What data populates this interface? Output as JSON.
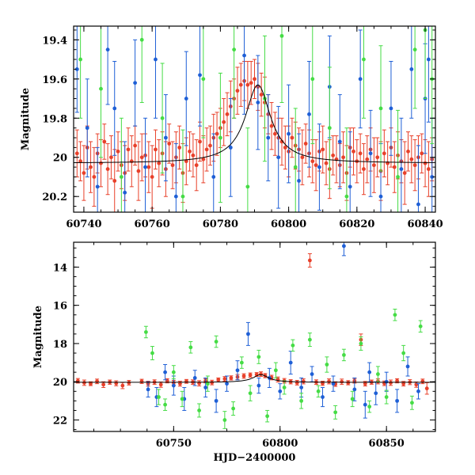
{
  "chart_data": [
    {
      "type": "scatter",
      "panel": "top",
      "xlim": [
        60737,
        60843
      ],
      "ylim": [
        20.28,
        19.33
      ],
      "y_inverted": true,
      "xlabel": "",
      "ylabel": "Magnitude",
      "xticks": [
        60740,
        60760,
        60780,
        60800,
        60820,
        60840
      ],
      "yticks": [
        19.4,
        19.6,
        19.8,
        20,
        20.2
      ],
      "xtick_labels": [
        "60740",
        "60760",
        "60780",
        "60800",
        "60820",
        "60840"
      ],
      "ytick_labels": [
        "19.4",
        "19.6",
        "19.8",
        "20",
        "20.2"
      ],
      "model": {
        "baseline": 20.03,
        "peak_x": 60791,
        "amplitude": 0.4,
        "width": 4.5
      },
      "series": [
        {
          "color": "#e8402a",
          "x": [
            60738,
            60739,
            60740,
            60741,
            60742,
            60743,
            60744,
            60745,
            60746,
            60747,
            60748,
            60749,
            60750,
            60751,
            60752,
            60753,
            60754,
            60755,
            60756,
            60757,
            60758,
            60759,
            60760,
            60761,
            60762,
            60763,
            60764,
            60765,
            60766,
            60767,
            60768,
            60769,
            60770,
            60771,
            60772,
            60773,
            60774,
            60775,
            60776,
            60777,
            60778,
            60779,
            60780,
            60781,
            60782,
            60783,
            60784,
            60785,
            60786,
            60787,
            60788,
            60789,
            60790,
            60791,
            60792,
            60793,
            60794,
            60795,
            60796,
            60797,
            60798,
            60799,
            60800,
            60801,
            60802,
            60803,
            60804,
            60805,
            60806,
            60807,
            60808,
            60809,
            60810,
            60811,
            60812,
            60813,
            60814,
            60815,
            60816,
            60817,
            60818,
            60819,
            60820,
            60821,
            60822,
            60823,
            60824,
            60825,
            60826,
            60827,
            60828,
            60829,
            60830,
            60831,
            60832,
            60833,
            60834,
            60835,
            60836,
            60837,
            60838,
            60839,
            60840,
            60841,
            60842
          ],
          "y": [
            19.98,
            20.02,
            20.08,
            19.95,
            20.05,
            20.1,
            19.98,
            20.03,
            19.92,
            20.06,
            20.0,
            20.12,
            19.97,
            20.04,
            20.08,
            19.96,
            20.02,
            19.94,
            20.07,
            20.0,
            19.99,
            20.05,
            20.1,
            19.96,
            20.03,
            19.98,
            20.06,
            19.93,
            20.04,
            20.0,
            19.95,
            20.08,
            20.02,
            19.97,
            19.99,
            20.04,
            19.92,
            20.01,
            19.96,
            19.94,
            19.9,
            19.88,
            19.85,
            19.82,
            19.78,
            19.74,
            19.7,
            19.66,
            19.63,
            19.61,
            19.63,
            19.62,
            19.6,
            19.64,
            19.68,
            19.72,
            19.78,
            19.84,
            19.88,
            19.9,
            19.92,
            19.95,
            19.97,
            19.9,
            19.94,
            19.96,
            20.0,
            19.93,
            19.98,
            20.02,
            20.04,
            19.97,
            19.96,
            20.03,
            20.06,
            19.99,
            20.01,
            20.04,
            20.0,
            20.08,
            19.95,
            19.97,
            20.02,
            19.98,
            20.06,
            20.01,
            19.96,
            20.04,
            20.0,
            20.07,
            19.98,
            20.03,
            19.95,
            20.05,
            19.99,
            20.02,
            20.08,
            19.97,
            20.01,
            20.04,
            20.0,
            19.98,
            20.03,
            20.06,
            20.01
          ],
          "err": [
            0.12,
            0.1,
            0.14,
            0.11,
            0.13,
            0.15,
            0.1,
            0.12,
            0.09,
            0.13,
            0.11,
            0.16,
            0.1,
            0.12,
            0.14,
            0.11,
            0.13,
            0.1,
            0.15,
            0.12,
            0.11,
            0.13,
            0.16,
            0.1,
            0.12,
            0.11,
            0.14,
            0.1,
            0.12,
            0.13,
            0.11,
            0.15,
            0.12,
            0.1,
            0.11,
            0.13,
            0.1,
            0.12,
            0.11,
            0.1,
            0.12,
            0.11,
            0.1,
            0.12,
            0.11,
            0.13,
            0.1,
            0.12,
            0.11,
            0.1,
            0.12,
            0.11,
            0.1,
            0.12,
            0.11,
            0.13,
            0.1,
            0.12,
            0.11,
            0.1,
            0.12,
            0.11,
            0.13,
            0.1,
            0.12,
            0.11,
            0.14,
            0.1,
            0.12,
            0.11,
            0.13,
            0.1,
            0.12,
            0.11,
            0.15,
            0.1,
            0.12,
            0.11,
            0.13,
            0.14,
            0.1,
            0.12,
            0.11,
            0.1,
            0.13,
            0.12,
            0.11,
            0.14,
            0.1,
            0.15,
            0.12,
            0.11,
            0.1,
            0.13,
            0.12,
            0.11,
            0.16,
            0.1,
            0.12,
            0.13,
            0.11,
            0.1,
            0.12,
            0.14,
            0.11
          ]
        },
        {
          "color": "#1e5fd6",
          "x": [
            60738,
            60741,
            60744,
            60747,
            60749,
            60752,
            60755,
            60758,
            60761,
            60764,
            60767,
            60770,
            60774,
            60778,
            60783,
            60787,
            60791,
            60794,
            60797,
            60800,
            60803,
            60806,
            60809,
            60812,
            60815,
            60818,
            60821,
            60824,
            60827,
            60830,
            60833,
            60836,
            60838,
            60840,
            60841,
            60842
          ],
          "y": [
            19.55,
            19.85,
            20.15,
            19.45,
            19.75,
            20.18,
            19.62,
            20.05,
            19.5,
            19.9,
            20.2,
            19.7,
            19.58,
            20.1,
            19.95,
            19.48,
            19.72,
            19.9,
            20.0,
            19.88,
            20.12,
            19.78,
            20.05,
            19.64,
            19.92,
            20.15,
            19.6,
            19.98,
            20.2,
            19.75,
            20.06,
            19.55,
            20.24,
            19.7,
            19.5,
            20.1
          ],
          "err": [
            0.22,
            0.25,
            0.2,
            0.28,
            0.24,
            0.26,
            0.22,
            0.25,
            0.3,
            0.22,
            0.27,
            0.24,
            0.26,
            0.22,
            0.25,
            0.3,
            0.24,
            0.22,
            0.26,
            0.25,
            0.24,
            0.27,
            0.22,
            0.26,
            0.24,
            0.28,
            0.25,
            0.22,
            0.27,
            0.24,
            0.26,
            0.25,
            0.3,
            0.28,
            0.32,
            0.3
          ]
        },
        {
          "color": "#45dc45",
          "x": [
            60739,
            60745,
            60751,
            60757,
            60763,
            60769,
            60775,
            60780,
            60784,
            60788,
            60793,
            60798,
            60802,
            60807,
            60812,
            60817,
            60822,
            60827,
            60832,
            60837,
            60840,
            60842
          ],
          "y": [
            19.5,
            19.65,
            20.1,
            19.4,
            19.8,
            20.2,
            19.6,
            19.9,
            19.45,
            20.15,
            19.7,
            19.38,
            20.05,
            19.6,
            19.85,
            20.2,
            19.5,
            19.75,
            20.1,
            19.45,
            19.35,
            19.6
          ],
          "err": [
            0.3,
            0.35,
            0.3,
            0.32,
            0.28,
            0.34,
            0.3,
            0.33,
            0.35,
            0.3,
            0.32,
            0.34,
            0.3,
            0.33,
            0.31,
            0.35,
            0.3,
            0.32,
            0.34,
            0.3,
            0.35,
            0.33
          ]
        }
      ]
    },
    {
      "type": "scatter",
      "panel": "bottom",
      "xlim": [
        60703,
        60873
      ],
      "ylim": [
        22.6,
        12.7
      ],
      "y_inverted": true,
      "xlabel": "HJD−2400000",
      "ylabel": "Magnitude",
      "xticks": [
        60750,
        60800,
        60850
      ],
      "yticks": [
        14,
        16,
        18,
        20,
        22
      ],
      "xtick_labels": [
        "60750",
        "60800",
        "60850"
      ],
      "ytick_labels": [
        "14",
        "16",
        "18",
        "20",
        "22"
      ],
      "model": {
        "baseline": 20.03,
        "peak_x": 60791,
        "amplitude": 0.4,
        "width": 4.5
      },
      "series": [
        {
          "color": "#e8402a",
          "x": [
            60705,
            60708,
            60711,
            60714,
            60717,
            60720,
            60723,
            60726,
            60729,
            60735,
            60738,
            60741,
            60744,
            60747,
            60750,
            60753,
            60756,
            60759,
            60762,
            60765,
            60768,
            60771,
            60774,
            60777,
            60780,
            60783,
            60786,
            60789,
            60791,
            60793,
            60796,
            60799,
            60802,
            60805,
            60808,
            60811,
            60814,
            60817,
            60820,
            60823,
            60826,
            60829,
            60832,
            60835,
            60838,
            60840,
            60843,
            60846,
            60849,
            60852,
            60855,
            60858,
            60861,
            60864,
            60867,
            60869
          ],
          "y": [
            19.95,
            20.05,
            20.1,
            19.98,
            20.15,
            20.02,
            20.08,
            20.2,
            20.05,
            19.98,
            20.1,
            20.02,
            20.15,
            19.95,
            20.05,
            20.1,
            19.98,
            20.02,
            20.08,
            19.95,
            20.04,
            19.9,
            19.85,
            19.8,
            19.75,
            19.7,
            19.65,
            19.62,
            19.6,
            19.68,
            19.78,
            19.88,
            19.95,
            20.0,
            20.05,
            19.98,
            13.65,
            20.02,
            20.08,
            19.98,
            20.12,
            20.0,
            20.05,
            19.95,
            17.8,
            20.1,
            20.02,
            19.98,
            20.08,
            20.05,
            19.95,
            20.1,
            20.02,
            20.15,
            19.98,
            20.35
          ],
          "err": [
            0.12,
            0.14,
            0.1,
            0.12,
            0.15,
            0.11,
            0.13,
            0.16,
            0.12,
            0.11,
            0.13,
            0.12,
            0.14,
            0.11,
            0.12,
            0.13,
            0.1,
            0.12,
            0.14,
            0.11,
            0.12,
            0.1,
            0.12,
            0.11,
            0.13,
            0.12,
            0.11,
            0.1,
            0.12,
            0.11,
            0.12,
            0.13,
            0.12,
            0.11,
            0.12,
            0.13,
            0.35,
            0.12,
            0.11,
            0.13,
            0.12,
            0.14,
            0.11,
            0.12,
            0.3,
            0.12,
            0.11,
            0.13,
            0.12,
            0.14,
            0.11,
            0.12,
            0.13,
            0.14,
            0.12,
            0.3
          ]
        },
        {
          "color": "#1e5fd6",
          "x": [
            60738,
            60742,
            60746,
            60750,
            60755,
            60760,
            60765,
            60770,
            60775,
            60780,
            60785,
            60790,
            60795,
            60800,
            60805,
            60810,
            60815,
            60820,
            60825,
            60830,
            60835,
            60840,
            60842,
            60845,
            60850,
            60855,
            60860,
            60865
          ],
          "y": [
            20.4,
            20.8,
            19.5,
            20.2,
            20.9,
            19.8,
            20.3,
            21.0,
            20.1,
            19.4,
            17.5,
            20.2,
            19.8,
            20.5,
            19.0,
            20.3,
            19.6,
            20.8,
            20.1,
            12.9,
            20.4,
            21.2,
            19.5,
            20.6,
            20.0,
            21.0,
            19.2,
            20.5
          ],
          "err": [
            0.4,
            0.5,
            0.4,
            0.5,
            0.6,
            0.4,
            0.5,
            0.6,
            0.4,
            0.5,
            0.6,
            0.4,
            0.5,
            0.4,
            0.6,
            0.5,
            0.4,
            0.5,
            0.4,
            0.5,
            0.6,
            0.7,
            0.5,
            0.6,
            0.5,
            0.6,
            0.5,
            0.4
          ]
        },
        {
          "color": "#45dc45",
          "x": [
            60737,
            60740,
            60743,
            60746,
            60750,
            60754,
            60758,
            60762,
            60766,
            60770,
            60774,
            60778,
            60782,
            60786,
            60790,
            60794,
            60798,
            60802,
            60806,
            60810,
            60814,
            60818,
            60822,
            60826,
            60830,
            60834,
            60838,
            60842,
            60846,
            60850,
            60854,
            60858,
            60862,
            60866
          ],
          "y": [
            17.4,
            18.5,
            20.8,
            21.2,
            19.5,
            20.9,
            18.2,
            21.5,
            20.1,
            17.9,
            22.0,
            21.4,
            19.0,
            20.6,
            18.7,
            21.8,
            19.4,
            20.3,
            18.1,
            21.0,
            17.8,
            20.5,
            19.1,
            21.6,
            18.6,
            20.9,
            18.0,
            21.3,
            19.6,
            20.8,
            16.5,
            18.5,
            21.1,
            17.1
          ],
          "err": [
            0.3,
            0.35,
            0.4,
            0.3,
            0.35,
            0.4,
            0.3,
            0.35,
            0.4,
            0.3,
            0.45,
            0.35,
            0.3,
            0.4,
            0.35,
            0.3,
            0.4,
            0.35,
            0.3,
            0.4,
            0.35,
            0.3,
            0.4,
            0.35,
            0.3,
            0.4,
            0.35,
            0.3,
            0.4,
            0.35,
            0.3,
            0.4,
            0.35,
            0.3
          ]
        }
      ]
    }
  ]
}
